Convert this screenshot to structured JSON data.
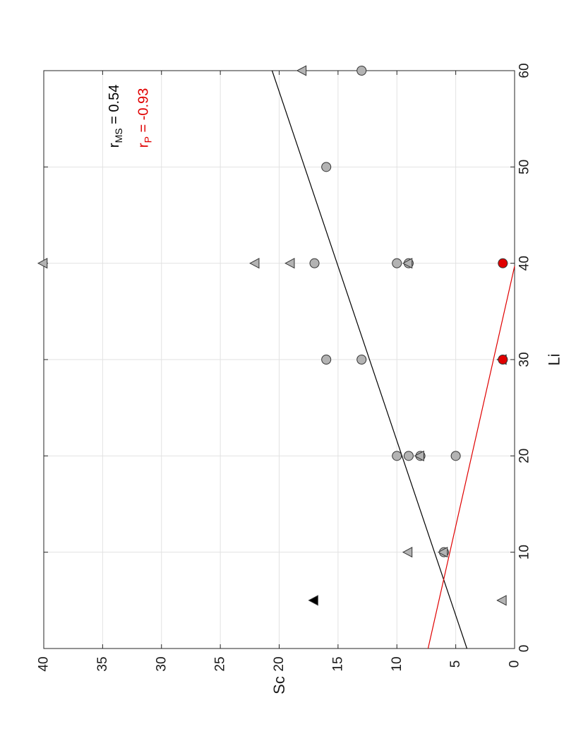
{
  "chart_data": {
    "type": "scatter",
    "orientation": "rotated-90-ccw",
    "xlabel": "Li",
    "ylabel": "Sc",
    "xlim": [
      0,
      60
    ],
    "ylim": [
      0,
      40
    ],
    "xticks": [
      "0",
      "10",
      "20",
      "30",
      "40",
      "50",
      "60"
    ],
    "yticks": [
      "0",
      "5",
      "10",
      "15",
      "20",
      "25",
      "30",
      "35",
      "40"
    ],
    "grid": true,
    "colors": {
      "gray_marker": "#b3b3b3",
      "red": "#e00000",
      "black": "#000000",
      "grid": "#e2e2e2"
    },
    "series": [
      {
        "marker": "circle",
        "color": "#b3b3b3",
        "points": [
          [
            10,
            6
          ],
          [
            20,
            10
          ],
          [
            20,
            9
          ],
          [
            20,
            8
          ],
          [
            20,
            5
          ],
          [
            30,
            16
          ],
          [
            30,
            13
          ],
          [
            40,
            17
          ],
          [
            40,
            10
          ],
          [
            40,
            9
          ],
          [
            50,
            16
          ],
          [
            60,
            13
          ]
        ]
      },
      {
        "marker": "triangle",
        "color": "#b3b3b3",
        "points": [
          [
            5,
            1
          ],
          [
            10,
            9
          ],
          [
            10,
            6
          ],
          [
            20,
            8
          ],
          [
            30,
            1
          ],
          [
            40,
            40
          ],
          [
            40,
            22
          ],
          [
            40,
            19
          ],
          [
            40,
            9
          ],
          [
            60,
            18
          ]
        ]
      },
      {
        "marker": "triangle",
        "color": "#000000",
        "points": [
          [
            5,
            17
          ]
        ]
      },
      {
        "marker": "circle",
        "color": "#e00000",
        "points": [
          [
            30,
            1
          ],
          [
            40,
            1
          ]
        ]
      }
    ],
    "lines": [
      {
        "color": "#000000",
        "from": [
          0,
          4.05
        ],
        "to": [
          60,
          20.6
        ]
      },
      {
        "color": "#e00000",
        "from": [
          0,
          7.35
        ],
        "to": [
          39.7,
          0
        ]
      }
    ],
    "annotations": [
      {
        "main": "r",
        "sub": "MS",
        "rest": " = 0.54",
        "color": "#000000",
        "at": [
          52,
          34
        ]
      },
      {
        "main": "r",
        "sub": "P",
        "rest": " = -0.93",
        "color": "#e00000",
        "at": [
          52,
          31.5
        ]
      }
    ]
  }
}
